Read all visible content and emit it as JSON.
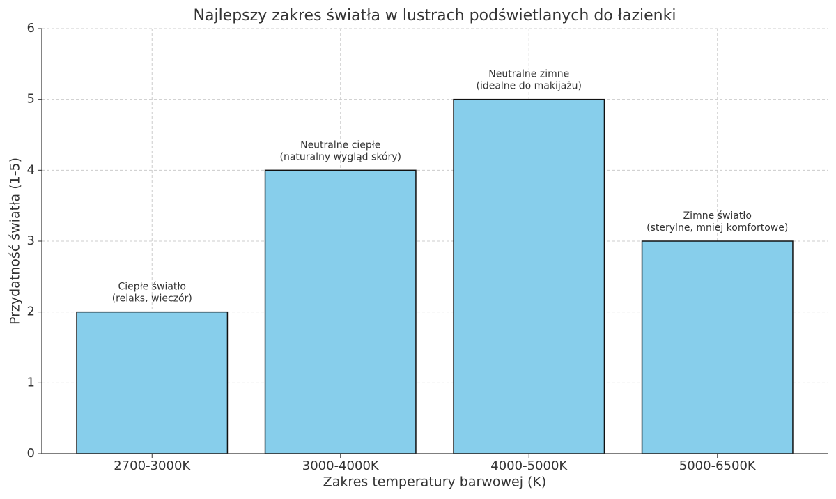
{
  "chart_data": {
    "type": "bar",
    "title": "Najlepszy zakres światła w lustrach podświetlanych do łazienki",
    "xlabel": "Zakres temperatury barwowej (K)",
    "ylabel": "Przydatność światła (1-5)",
    "categories": [
      "2700-3000K",
      "3000-4000K",
      "4000-5000K",
      "5000-6500K"
    ],
    "values": [
      2,
      4,
      5,
      3
    ],
    "annotations": [
      [
        "Ciepłe światło",
        "(relaks, wieczór)"
      ],
      [
        "Neutralne ciepłe",
        "(naturalny wygląd skóry)"
      ],
      [
        "Neutralne zimne",
        "(idealne do makijażu)"
      ],
      [
        "Zimne światło",
        "(sterylne, mniej komfortowe)"
      ]
    ],
    "color": "#87ceeb",
    "ylim": [
      0,
      6
    ],
    "yticks": [
      0,
      1,
      2,
      3,
      4,
      5,
      6
    ],
    "grid": true
  }
}
